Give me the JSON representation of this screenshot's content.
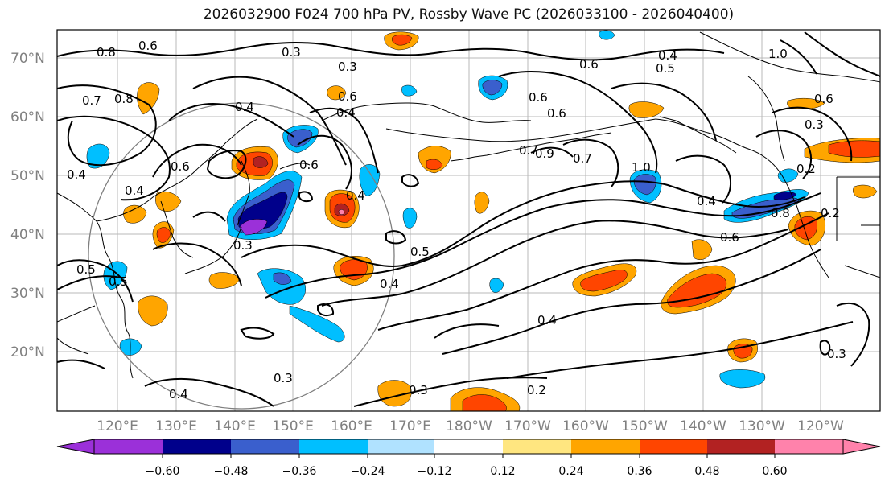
{
  "title": "2026032900 F024 700 hPa PV, Rossby Wave PC (2026033100 - 2026040400)",
  "lat_labels": [
    "70°N",
    "60°N",
    "50°N",
    "40°N",
    "30°N",
    "20°N"
  ],
  "lon_labels": [
    "120°E",
    "130°E",
    "140°E",
    "150°E",
    "160°E",
    "170°E",
    "180°W",
    "170°W",
    "160°W",
    "150°W",
    "140°W",
    "130°W",
    "120°W"
  ],
  "contour_labels": [
    "0.8",
    "0.6",
    "0.3",
    "0.3",
    "0.5",
    "0.6",
    "0.4",
    "0.7",
    "0.8",
    "0.4",
    "0.6",
    "0.4",
    "0.6",
    "0.6",
    "0.7",
    "0.9",
    "0.7",
    "1.0",
    "0.4",
    "0.6",
    "0.8",
    "0.2",
    "0.3",
    "0.6",
    "1.0",
    "0.4",
    "0.4",
    "0.4",
    "0.6",
    "0.6",
    "0.3",
    "0.5",
    "0.4",
    "0.4",
    "0.5",
    "0.4",
    "0.3",
    "0.2",
    "0.3",
    "0.2",
    "0.3",
    "0.5"
  ],
  "colorbar": {
    "ticks": [
      "−0.60",
      "−0.48",
      "−0.36",
      "−0.24",
      "−0.12",
      "0.12",
      "0.24",
      "0.36",
      "0.48",
      "0.60"
    ],
    "colors": [
      "#9b30d9",
      "#00008b",
      "#3a5fcd",
      "#00bfff",
      "#b0e2ff",
      "#ffffff",
      "#ffe680",
      "#ffa500",
      "#ff4500",
      "#b22222",
      "#ff82ab"
    ]
  },
  "legend_colors": {
    "neg_strong": "#9b30d9",
    "neg_3": "#00008b",
    "neg_2": "#3a5fcd",
    "neg_1": "#00bfff",
    "neg_0": "#b0e2ff",
    "pos_0": "#ffe680",
    "pos_1": "#ffa500",
    "pos_2": "#ff4500",
    "pos_3": "#b22222",
    "pos_strong": "#ff82ab"
  }
}
